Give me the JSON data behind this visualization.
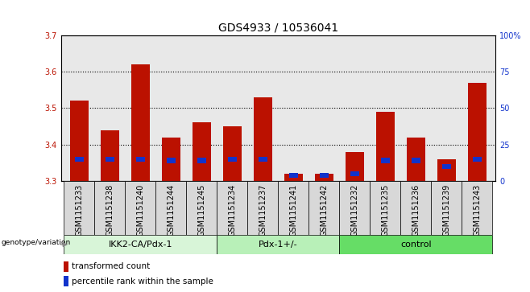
{
  "title": "GDS4933 / 10536041",
  "samples": [
    "GSM1151233",
    "GSM1151238",
    "GSM1151240",
    "GSM1151244",
    "GSM1151245",
    "GSM1151234",
    "GSM1151237",
    "GSM1151241",
    "GSM1151242",
    "GSM1151232",
    "GSM1151235",
    "GSM1151236",
    "GSM1151239",
    "GSM1151243"
  ],
  "red_values": [
    3.52,
    3.44,
    3.62,
    3.42,
    3.46,
    3.45,
    3.53,
    3.32,
    3.32,
    3.38,
    3.49,
    3.42,
    3.36,
    3.57
  ],
  "blue_percentiles": [
    15,
    15,
    15,
    14,
    14,
    15,
    15,
    4,
    4,
    5,
    14,
    14,
    10,
    15
  ],
  "baseline": 3.3,
  "ylim_left": [
    3.3,
    3.7
  ],
  "ylim_right": [
    0,
    100
  ],
  "yticks_left": [
    3.3,
    3.4,
    3.5,
    3.6,
    3.7
  ],
  "yticks_right": [
    0,
    25,
    50,
    75,
    100
  ],
  "ytick_labels_right": [
    "0",
    "25",
    "50",
    "75",
    "100%"
  ],
  "red_color": "#bb1100",
  "blue_color": "#1133cc",
  "bar_width": 0.6,
  "groups": [
    {
      "label": "IKK2-CA/Pdx-1",
      "start": 0,
      "end": 5,
      "color": "#d8f5d8"
    },
    {
      "label": "Pdx-1+/-",
      "start": 5,
      "end": 9,
      "color": "#b8f0b8"
    },
    {
      "label": "control",
      "start": 9,
      "end": 14,
      "color": "#66dd66"
    }
  ],
  "legend_items": [
    {
      "label": "transformed count",
      "color": "#bb1100"
    },
    {
      "label": "percentile rank within the sample",
      "color": "#1133cc"
    }
  ],
  "genotype_label": "genotype/variation",
  "bg_plot": "#e8e8e8",
  "grid_color": "#000000",
  "title_fontsize": 10,
  "tick_fontsize": 7,
  "label_fontsize": 7.5
}
